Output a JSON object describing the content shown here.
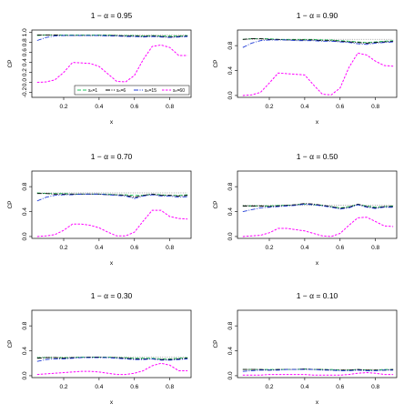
{
  "colors": {
    "s1": "#22c55e",
    "s6": "#000000",
    "s15": "#1f3bd6",
    "s60": "#ff00ff",
    "ref": "#888888"
  },
  "chart_data": [
    {
      "type": "line",
      "title": "1 − α = 0.95",
      "xlabel": "x",
      "ylabel": "CP",
      "xlim": [
        0.02,
        0.92
      ],
      "ylim": [
        -0.3,
        1.05
      ],
      "xticks": [
        "0.2",
        "0.4",
        "0.6",
        "0.8"
      ],
      "yticks": [
        "-0.2",
        "0.0",
        "0.2",
        "0.4",
        "0.6",
        "0.8",
        "1.0"
      ],
      "ref": 0.95,
      "legend": {
        "position": "bottom-right",
        "entries": [
          "sₙ=1",
          "sₙ=6",
          "sₙ=15",
          "sₙ=60"
        ]
      },
      "x": [
        0.05,
        0.1,
        0.15,
        0.2,
        0.25,
        0.3,
        0.35,
        0.4,
        0.45,
        0.5,
        0.55,
        0.6,
        0.65,
        0.7,
        0.75,
        0.8,
        0.85,
        0.9
      ],
      "series": [
        {
          "name": "sₙ=1",
          "values": [
            0.94,
            0.95,
            0.95,
            0.95,
            0.95,
            0.95,
            0.95,
            0.95,
            0.95,
            0.94,
            0.94,
            0.94,
            0.93,
            0.94,
            0.93,
            0.93,
            0.93,
            0.94
          ]
        },
        {
          "name": "sₙ=6",
          "values": [
            0.95,
            0.95,
            0.95,
            0.94,
            0.94,
            0.94,
            0.94,
            0.94,
            0.94,
            0.94,
            0.93,
            0.93,
            0.92,
            0.93,
            0.92,
            0.91,
            0.92,
            0.93
          ]
        },
        {
          "name": "sₙ=15",
          "values": [
            0.84,
            0.9,
            0.93,
            0.94,
            0.94,
            0.94,
            0.94,
            0.94,
            0.93,
            0.93,
            0.92,
            0.92,
            0.91,
            0.92,
            0.91,
            0.9,
            0.91,
            0.92
          ]
        },
        {
          "name": "sₙ=60",
          "values": [
            0.0,
            0.01,
            0.05,
            0.2,
            0.4,
            0.39,
            0.38,
            0.32,
            0.17,
            0.02,
            0.01,
            0.14,
            0.46,
            0.72,
            0.75,
            0.7,
            0.54,
            0.54
          ]
        }
      ]
    },
    {
      "type": "line",
      "title": "1 − α = 0.90",
      "xlabel": "x",
      "ylabel": "CP",
      "xlim": [
        0.02,
        0.92
      ],
      "ylim": [
        -0.03,
        1.05
      ],
      "xticks": [
        "0.2",
        "0.4",
        "0.6",
        "0.8"
      ],
      "yticks": [
        "0.0",
        "0.4",
        "0.8"
      ],
      "ref": 0.9,
      "x": [
        0.05,
        0.1,
        0.15,
        0.2,
        0.25,
        0.3,
        0.35,
        0.4,
        0.45,
        0.5,
        0.55,
        0.6,
        0.65,
        0.7,
        0.75,
        0.8,
        0.85,
        0.9
      ],
      "series": [
        {
          "name": "sₙ=1",
          "values": [
            0.9,
            0.91,
            0.91,
            0.91,
            0.9,
            0.9,
            0.9,
            0.9,
            0.9,
            0.89,
            0.89,
            0.88,
            0.87,
            0.86,
            0.85,
            0.86,
            0.87,
            0.88
          ]
        },
        {
          "name": "sₙ=6",
          "values": [
            0.9,
            0.91,
            0.91,
            0.9,
            0.9,
            0.89,
            0.89,
            0.89,
            0.89,
            0.88,
            0.88,
            0.87,
            0.86,
            0.85,
            0.84,
            0.85,
            0.86,
            0.87
          ]
        },
        {
          "name": "sₙ=15",
          "values": [
            0.77,
            0.84,
            0.88,
            0.89,
            0.89,
            0.89,
            0.88,
            0.88,
            0.88,
            0.87,
            0.87,
            0.86,
            0.85,
            0.83,
            0.82,
            0.84,
            0.85,
            0.86
          ]
        },
        {
          "name": "sₙ=60",
          "values": [
            0.0,
            0.01,
            0.05,
            0.2,
            0.36,
            0.35,
            0.34,
            0.33,
            0.17,
            0.02,
            0.01,
            0.12,
            0.45,
            0.68,
            0.65,
            0.55,
            0.48,
            0.47
          ]
        }
      ]
    },
    {
      "type": "line",
      "title": "1 − α = 0.70",
      "xlabel": "x",
      "ylabel": "CP",
      "xlim": [
        0.02,
        0.92
      ],
      "ylim": [
        -0.03,
        1.05
      ],
      "xticks": [
        "0.2",
        "0.4",
        "0.6",
        "0.8"
      ],
      "yticks": [
        "0.0",
        "0.4",
        "0.8"
      ],
      "ref": 0.7,
      "x": [
        0.05,
        0.1,
        0.15,
        0.2,
        0.25,
        0.3,
        0.35,
        0.4,
        0.45,
        0.5,
        0.55,
        0.6,
        0.65,
        0.7,
        0.75,
        0.8,
        0.85,
        0.9
      ],
      "series": [
        {
          "name": "sₙ=1",
          "values": [
            0.7,
            0.69,
            0.69,
            0.69,
            0.68,
            0.68,
            0.68,
            0.68,
            0.68,
            0.67,
            0.67,
            0.66,
            0.66,
            0.68,
            0.67,
            0.66,
            0.66,
            0.67
          ]
        },
        {
          "name": "sₙ=6",
          "values": [
            0.69,
            0.69,
            0.68,
            0.68,
            0.68,
            0.68,
            0.68,
            0.68,
            0.67,
            0.67,
            0.66,
            0.63,
            0.66,
            0.68,
            0.66,
            0.66,
            0.65,
            0.66
          ]
        },
        {
          "name": "sₙ=15",
          "values": [
            0.57,
            0.63,
            0.66,
            0.67,
            0.67,
            0.68,
            0.68,
            0.68,
            0.67,
            0.66,
            0.65,
            0.61,
            0.65,
            0.67,
            0.65,
            0.65,
            0.63,
            0.64
          ]
        },
        {
          "name": "sₙ=60",
          "values": [
            0.0,
            0.01,
            0.03,
            0.1,
            0.2,
            0.2,
            0.18,
            0.14,
            0.07,
            0.01,
            0.01,
            0.07,
            0.25,
            0.42,
            0.42,
            0.32,
            0.29,
            0.28
          ]
        }
      ]
    },
    {
      "type": "line",
      "title": "1 − α = 0.50",
      "xlabel": "x",
      "ylabel": "CP",
      "xlim": [
        0.02,
        0.92
      ],
      "ylim": [
        -0.03,
        1.05
      ],
      "xticks": [
        "0.2",
        "0.4",
        "0.6",
        "0.8"
      ],
      "yticks": [
        "0.0",
        "0.4",
        "0.8"
      ],
      "ref": 0.5,
      "x": [
        0.05,
        0.1,
        0.15,
        0.2,
        0.25,
        0.3,
        0.35,
        0.4,
        0.45,
        0.5,
        0.55,
        0.6,
        0.65,
        0.7,
        0.75,
        0.8,
        0.85,
        0.9
      ],
      "series": [
        {
          "name": "sₙ=1",
          "values": [
            0.49,
            0.49,
            0.49,
            0.49,
            0.5,
            0.5,
            0.51,
            0.52,
            0.51,
            0.5,
            0.48,
            0.46,
            0.48,
            0.51,
            0.49,
            0.47,
            0.48,
            0.49
          ]
        },
        {
          "name": "sₙ=6",
          "values": [
            0.49,
            0.49,
            0.49,
            0.48,
            0.49,
            0.5,
            0.51,
            0.53,
            0.52,
            0.5,
            0.48,
            0.45,
            0.47,
            0.52,
            0.48,
            0.46,
            0.48,
            0.48
          ]
        },
        {
          "name": "sₙ=15",
          "values": [
            0.4,
            0.43,
            0.46,
            0.47,
            0.48,
            0.49,
            0.5,
            0.52,
            0.51,
            0.49,
            0.47,
            0.44,
            0.46,
            0.51,
            0.47,
            0.45,
            0.47,
            0.47
          ]
        },
        {
          "name": "sₙ=60",
          "values": [
            0.0,
            0.01,
            0.02,
            0.06,
            0.13,
            0.13,
            0.11,
            0.09,
            0.05,
            0.01,
            0.0,
            0.05,
            0.18,
            0.3,
            0.31,
            0.24,
            0.17,
            0.16
          ]
        }
      ]
    },
    {
      "type": "line",
      "title": "1 − α = 0.30",
      "xlabel": "x",
      "ylabel": "CP",
      "xlim": [
        0.02,
        0.92
      ],
      "ylim": [
        -0.03,
        1.05
      ],
      "xticks": [
        "0.2",
        "0.4",
        "0.6",
        "0.8"
      ],
      "yticks": [
        "0.0",
        "0.4",
        "0.8"
      ],
      "ref": 0.3,
      "x": [
        0.05,
        0.1,
        0.15,
        0.2,
        0.25,
        0.3,
        0.35,
        0.4,
        0.45,
        0.5,
        0.55,
        0.6,
        0.65,
        0.7,
        0.75,
        0.8,
        0.85,
        0.9
      ],
      "series": [
        {
          "name": "sₙ=1",
          "values": [
            0.29,
            0.29,
            0.29,
            0.29,
            0.29,
            0.3,
            0.3,
            0.3,
            0.3,
            0.29,
            0.29,
            0.28,
            0.28,
            0.28,
            0.27,
            0.27,
            0.28,
            0.29
          ]
        },
        {
          "name": "sₙ=6",
          "values": [
            0.28,
            0.29,
            0.29,
            0.28,
            0.29,
            0.29,
            0.3,
            0.3,
            0.29,
            0.29,
            0.28,
            0.27,
            0.27,
            0.27,
            0.26,
            0.26,
            0.27,
            0.28
          ]
        },
        {
          "name": "sₙ=15",
          "values": [
            0.23,
            0.26,
            0.27,
            0.27,
            0.28,
            0.29,
            0.29,
            0.29,
            0.29,
            0.28,
            0.27,
            0.26,
            0.26,
            0.27,
            0.25,
            0.25,
            0.26,
            0.27
          ]
        },
        {
          "name": "sₙ=60",
          "values": [
            0.02,
            0.03,
            0.04,
            0.05,
            0.06,
            0.07,
            0.07,
            0.06,
            0.04,
            0.02,
            0.02,
            0.04,
            0.08,
            0.16,
            0.2,
            0.17,
            0.08,
            0.08
          ]
        }
      ]
    },
    {
      "type": "line",
      "title": "1 − α = 0.10",
      "xlabel": "x",
      "ylabel": "CP",
      "xlim": [
        0.02,
        0.92
      ],
      "ylim": [
        -0.03,
        1.05
      ],
      "xticks": [
        "0.2",
        "0.4",
        "0.6",
        "0.8"
      ],
      "yticks": [
        "0.0",
        "0.4",
        "0.8"
      ],
      "ref": 0.1,
      "x": [
        0.05,
        0.1,
        0.15,
        0.2,
        0.25,
        0.3,
        0.35,
        0.4,
        0.45,
        0.5,
        0.55,
        0.6,
        0.65,
        0.7,
        0.75,
        0.8,
        0.85,
        0.9
      ],
      "series": [
        {
          "name": "sₙ=1",
          "values": [
            0.1,
            0.1,
            0.1,
            0.1,
            0.1,
            0.1,
            0.1,
            0.11,
            0.1,
            0.1,
            0.1,
            0.09,
            0.09,
            0.1,
            0.09,
            0.09,
            0.1,
            0.1
          ]
        },
        {
          "name": "sₙ=6",
          "values": [
            0.1,
            0.1,
            0.1,
            0.09,
            0.1,
            0.1,
            0.1,
            0.11,
            0.1,
            0.1,
            0.09,
            0.09,
            0.09,
            0.1,
            0.09,
            0.09,
            0.09,
            0.1
          ]
        },
        {
          "name": "sₙ=15",
          "values": [
            0.07,
            0.08,
            0.09,
            0.09,
            0.09,
            0.1,
            0.1,
            0.1,
            0.1,
            0.09,
            0.09,
            0.08,
            0.08,
            0.09,
            0.08,
            0.08,
            0.09,
            0.09
          ]
        },
        {
          "name": "sₙ=60",
          "values": [
            0.01,
            0.01,
            0.01,
            0.02,
            0.02,
            0.02,
            0.02,
            0.02,
            0.01,
            0.01,
            0.01,
            0.01,
            0.02,
            0.04,
            0.05,
            0.04,
            0.02,
            0.02
          ]
        }
      ]
    }
  ]
}
